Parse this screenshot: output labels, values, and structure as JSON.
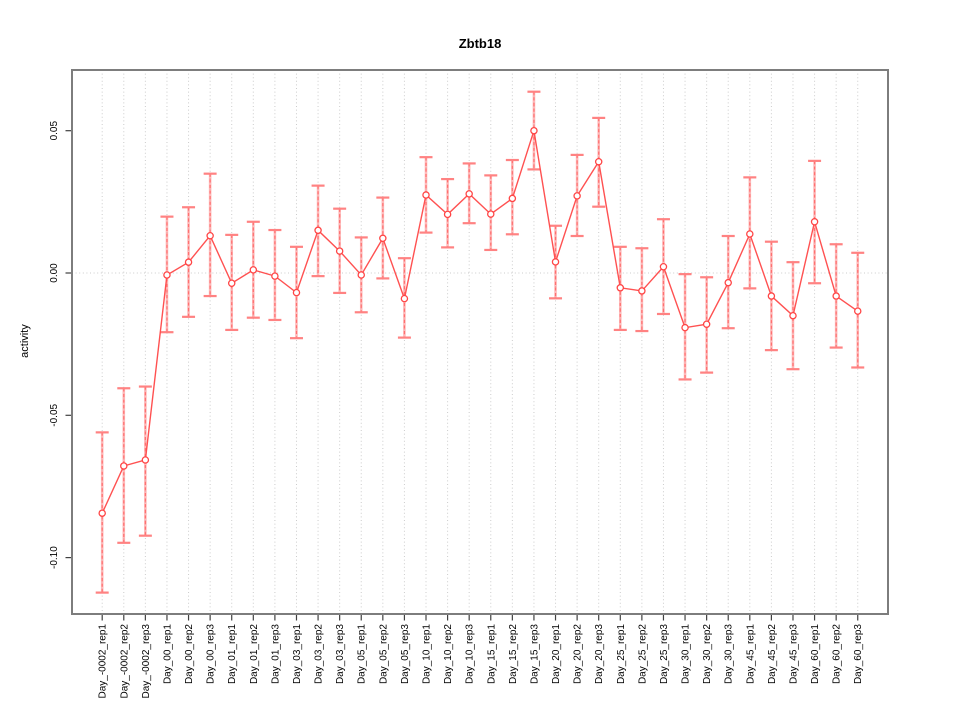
{
  "chart_data": {
    "type": "line",
    "title": "Zbtb18",
    "xlabel": "",
    "ylabel": "activity",
    "legend": "none",
    "grid": {
      "vertical": "dotted line at every category",
      "horizontal": "dotted line at 0.00 only"
    },
    "ylim": [
      -0.119,
      0.071
    ],
    "yticks": [
      0.05,
      0.0,
      -0.05,
      -0.1
    ],
    "ytick_labels": [
      "0.05",
      "0.00",
      "-0.05",
      "-0.10"
    ],
    "categories": [
      "Day_-0002_rep1",
      "Day_-0002_rep2",
      "Day_-0002_rep3",
      "Day_00_rep1",
      "Day_00_rep2",
      "Day_00_rep3",
      "Day_01_rep1",
      "Day_01_rep2",
      "Day_01_rep3",
      "Day_03_rep1",
      "Day_03_rep2",
      "Day_03_rep3",
      "Day_05_rep1",
      "Day_05_rep2",
      "Day_05_rep3",
      "Day_10_rep1",
      "Day_10_rep2",
      "Day_10_rep3",
      "Day_15_rep1",
      "Day_15_rep2",
      "Day_15_rep3",
      "Day_20_rep1",
      "Day_20_rep2",
      "Day_20_rep3",
      "Day_25_rep1",
      "Day_25_rep2",
      "Day_25_rep3",
      "Day_30_rep1",
      "Day_30_rep2",
      "Day_30_rep3",
      "Day_45_rep1",
      "Day_45_rep2",
      "Day_45_rep3",
      "Day_60_rep1",
      "Day_60_rep2",
      "Day_60_rep3"
    ],
    "series": [
      {
        "name": "activity",
        "values": [
          -0.0844,
          -0.0678,
          -0.0657,
          -0.0007,
          0.0038,
          0.0131,
          -0.0036,
          0.0011,
          -0.0011,
          -0.0069,
          0.015,
          0.0077,
          -0.0007,
          0.0122,
          -0.009,
          0.0274,
          0.0206,
          0.0278,
          0.0207,
          0.0262,
          0.05,
          0.0039,
          0.0271,
          0.0391,
          -0.0052,
          -0.0063,
          0.0022,
          -0.0192,
          -0.018,
          -0.0034,
          0.0137,
          -0.0081,
          -0.015,
          0.018,
          -0.0081,
          -0.0134
        ],
        "error_low": [
          -0.1123,
          -0.0948,
          -0.0923,
          -0.0208,
          -0.0154,
          -0.0081,
          -0.02,
          -0.0157,
          -0.0165,
          -0.0229,
          -0.0011,
          -0.007,
          -0.0138,
          -0.0019,
          -0.0227,
          0.0142,
          0.009,
          0.0175,
          0.0081,
          0.0136,
          0.0364,
          -0.0089,
          0.013,
          0.0233,
          -0.02,
          -0.0204,
          -0.0144,
          -0.0374,
          -0.035,
          -0.0194,
          -0.0054,
          -0.0271,
          -0.0338,
          -0.0036,
          -0.0262,
          -0.0332
        ],
        "error_high": [
          -0.056,
          -0.0405,
          -0.0399,
          0.0198,
          0.0231,
          0.0349,
          0.0134,
          0.018,
          0.0151,
          0.0092,
          0.0307,
          0.0226,
          0.0125,
          0.0265,
          0.0052,
          0.0407,
          0.033,
          0.0385,
          0.0343,
          0.0397,
          0.0637,
          0.0166,
          0.0415,
          0.0545,
          0.0092,
          0.0087,
          0.0189,
          -0.0004,
          -0.0015,
          0.013,
          0.0336,
          0.011,
          0.0038,
          0.0394,
          0.0101,
          0.0071
        ]
      }
    ],
    "colors": {
      "line": "#ff5151",
      "marker_stroke": "#ff4545",
      "marker_fill": "#ffffff",
      "error_bar": "#ff8282",
      "error_bar_dash": "#ff7070",
      "grid": "#cccccc",
      "frame": "#7d7d7d",
      "tick": "#404040",
      "text": "#000000",
      "background": "#ffffff"
    }
  }
}
